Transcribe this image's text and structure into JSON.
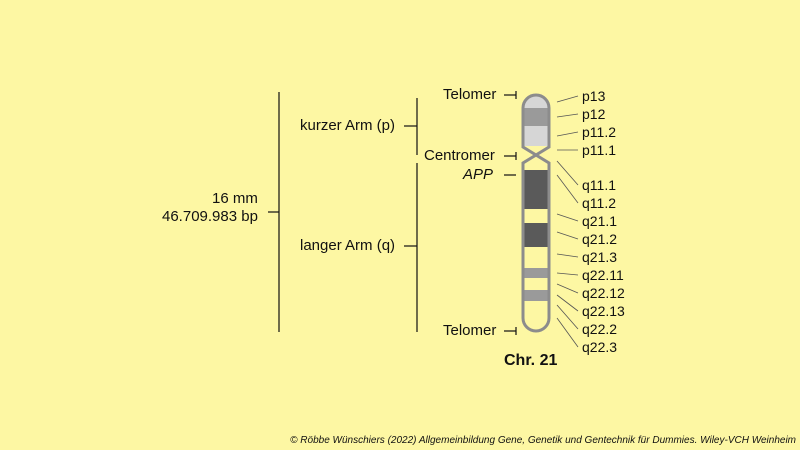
{
  "size": {
    "mm": "16 mm",
    "bp": "46.709.983 bp"
  },
  "arms": {
    "short": "kurzer Arm (p)",
    "long": "langer Arm (q)"
  },
  "structures": {
    "telomer_top": "Telomer",
    "centromer": "Centromer",
    "gene": "APP",
    "telomer_bottom": "Telomer"
  },
  "bands": [
    "p13",
    "p12",
    "p11.2",
    "p11.1",
    "q11.1",
    "q11.2",
    "q21.1",
    "q21.2",
    "q21.3",
    "q22.11",
    "q22.12",
    "q22.13",
    "q22.2",
    "q22.3"
  ],
  "chromosome_name": "Chr. 21",
  "credit": "© Röbbe Wünschiers (2022) Allgemeinbildung Gene, Genetik und Gentechnik für Dummies. Wiley-VCH Weinheim",
  "colors": {
    "background": "#fdf7a3",
    "outline": "#8c8c8c",
    "dark_band": "#5a5a5a",
    "mid_band": "#9a9a9a",
    "light_band": "#d6d6d6",
    "pale_band": "#fdf7a3"
  }
}
